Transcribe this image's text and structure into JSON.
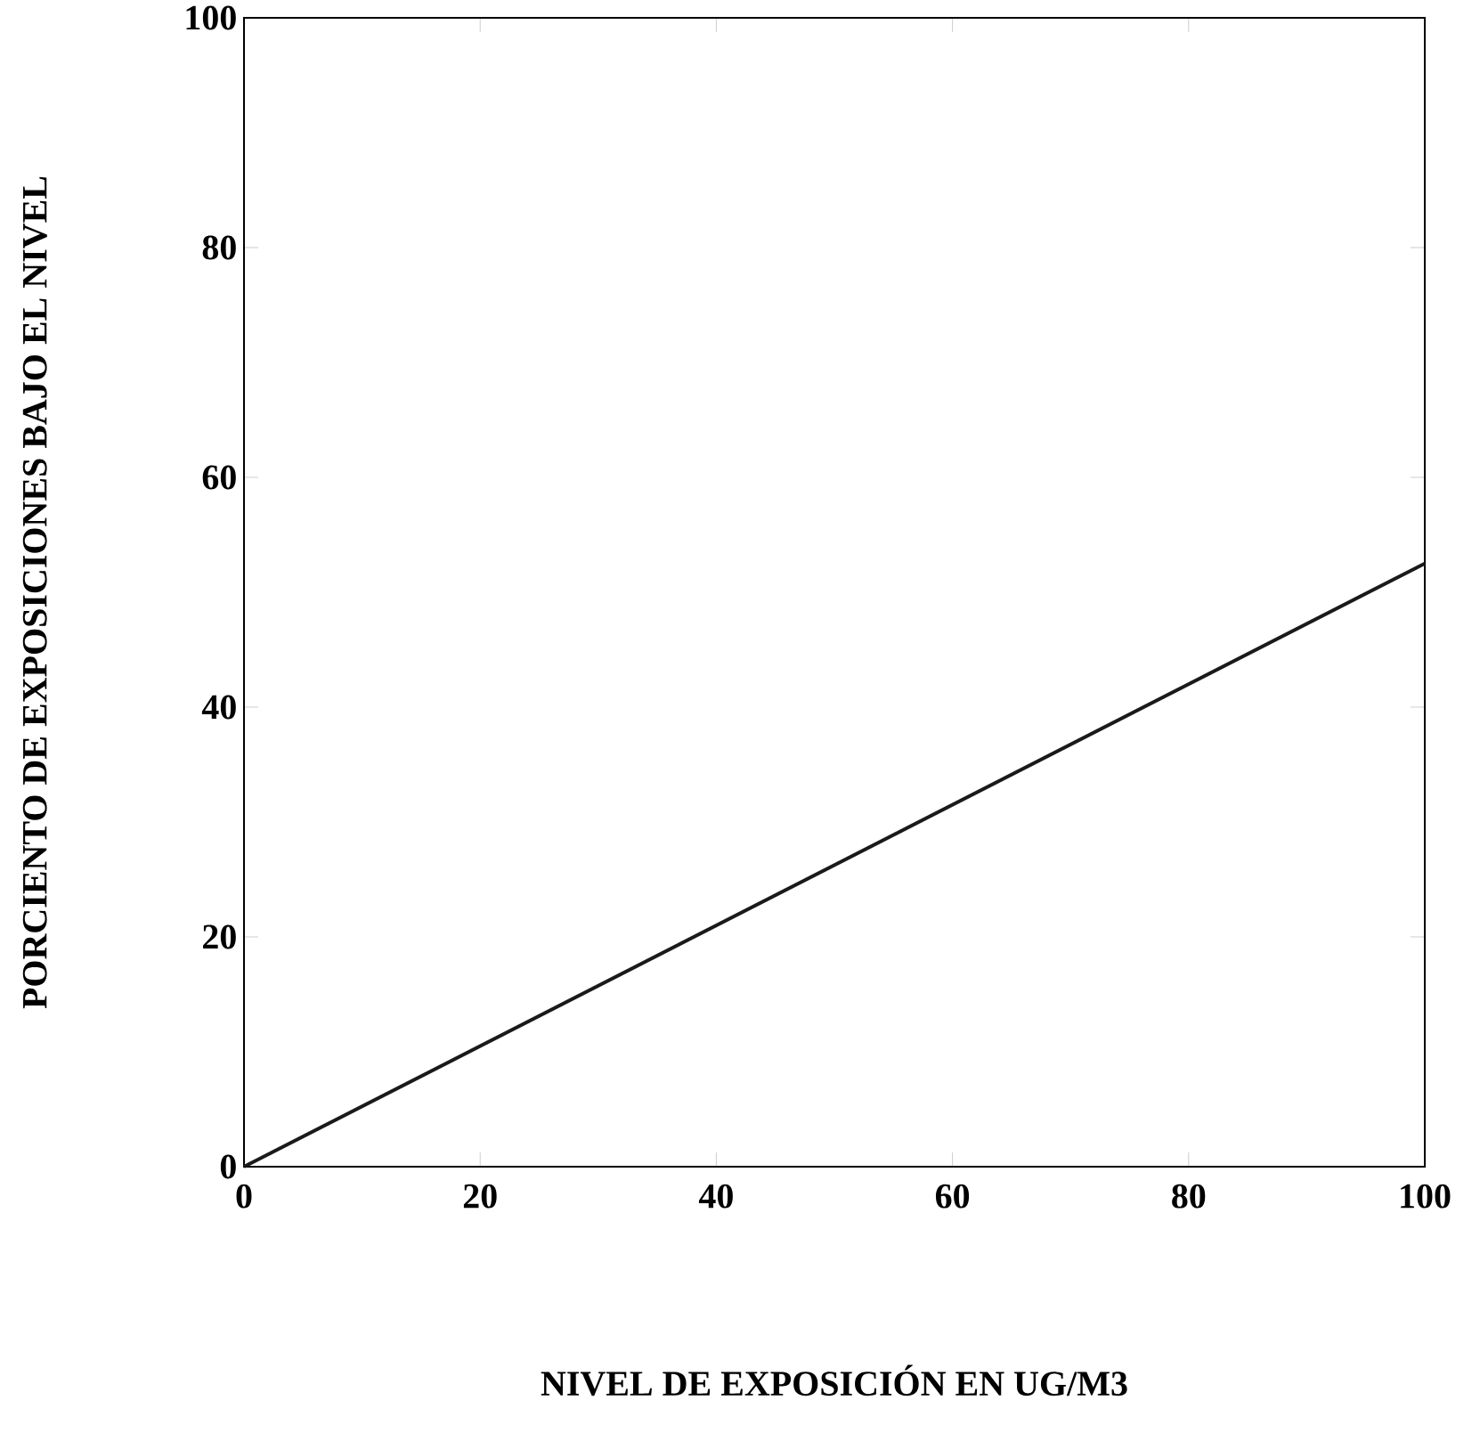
{
  "chart_data": {
    "type": "line",
    "xlabel": "NIVEL DE EXPOSICIÓN EN UG/M3",
    "ylabel": "PORCIENTO DE EXPOSICIONES BAJO EL NIVEL",
    "x": [
      0,
      100
    ],
    "values": [
      0,
      52.5
    ],
    "color": "#1a1a1a",
    "xlim": [
      0,
      100
    ],
    "ylim": [
      0,
      100
    ],
    "xticks": [
      0,
      20,
      40,
      60,
      80,
      100
    ],
    "yticks": [
      0,
      20,
      40,
      60,
      80,
      100
    ],
    "line_style": "solid"
  }
}
